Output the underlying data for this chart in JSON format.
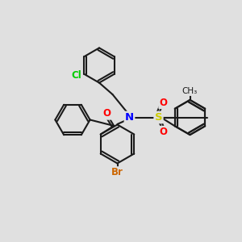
{
  "bg_color": "#e0e0e0",
  "bond_color": "#1a1a1a",
  "bond_lw": 1.5,
  "atom_colors": {
    "N": "#0000ff",
    "O": "#ff0000",
    "S": "#cccc00",
    "Cl": "#00cc00",
    "Br": "#cc6600"
  },
  "font_size": 8.5,
  "font_size_small": 7.5
}
